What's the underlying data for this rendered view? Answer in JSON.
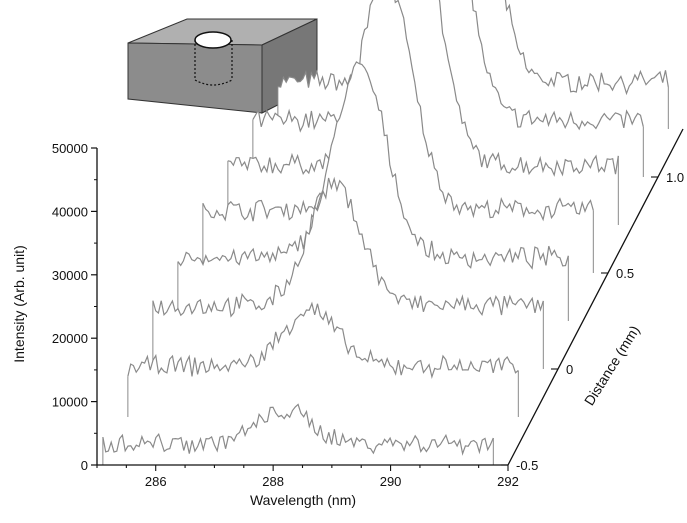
{
  "chart_data": {
    "type": "line",
    "title": "",
    "xlabel": "Wavelength (nm)",
    "ylabel": "Intensity (Arb. unit)",
    "zlabel": "Distance (mm)",
    "xlim": [
      285,
      292
    ],
    "ylim": [
      0,
      50000
    ],
    "zlim": [
      -0.5,
      1.25
    ],
    "x_ticks": [
      286,
      288,
      290,
      292
    ],
    "y_ticks": [
      0,
      10000,
      20000,
      30000,
      40000,
      50000
    ],
    "z_ticks": [
      -0.5,
      0,
      0.5,
      1.0
    ],
    "x_tick_labels": [
      "286",
      "288",
      "290",
      "292"
    ],
    "y_tick_labels": [
      "0",
      "10000",
      "20000",
      "30000",
      "40000",
      "50000"
    ],
    "z_tick_labels": [
      "-0.5",
      "0",
      "0.5",
      "1.0"
    ],
    "grid": false,
    "legend": "none",
    "line_color": "#8a8a8a",
    "peak_wavelength": 288.2,
    "series": [
      {
        "distance": -0.5,
        "baseline": 3500,
        "peak": 8500
      },
      {
        "distance": -0.25,
        "baseline": 8000,
        "peak": 17000
      },
      {
        "distance": 0.0,
        "baseline": 10000,
        "peak": 29000
      },
      {
        "distance": 0.25,
        "baseline": 10000,
        "peak": 40000
      },
      {
        "distance": 0.5,
        "baseline": 10000,
        "peak": 47000
      },
      {
        "distance": 0.75,
        "baseline": 9500,
        "peak": 56500
      },
      {
        "distance": 1.0,
        "baseline": 9000,
        "peak": 63000
      },
      {
        "distance": 1.25,
        "baseline": 7500,
        "peak": 66000
      }
    ],
    "inset": {
      "shape": "block-with-cylindrical-hole",
      "colors": {
        "top": "#b0b0b0",
        "front": "#8c8c8c",
        "side": "#777777",
        "hole": "#ffffff"
      }
    }
  }
}
